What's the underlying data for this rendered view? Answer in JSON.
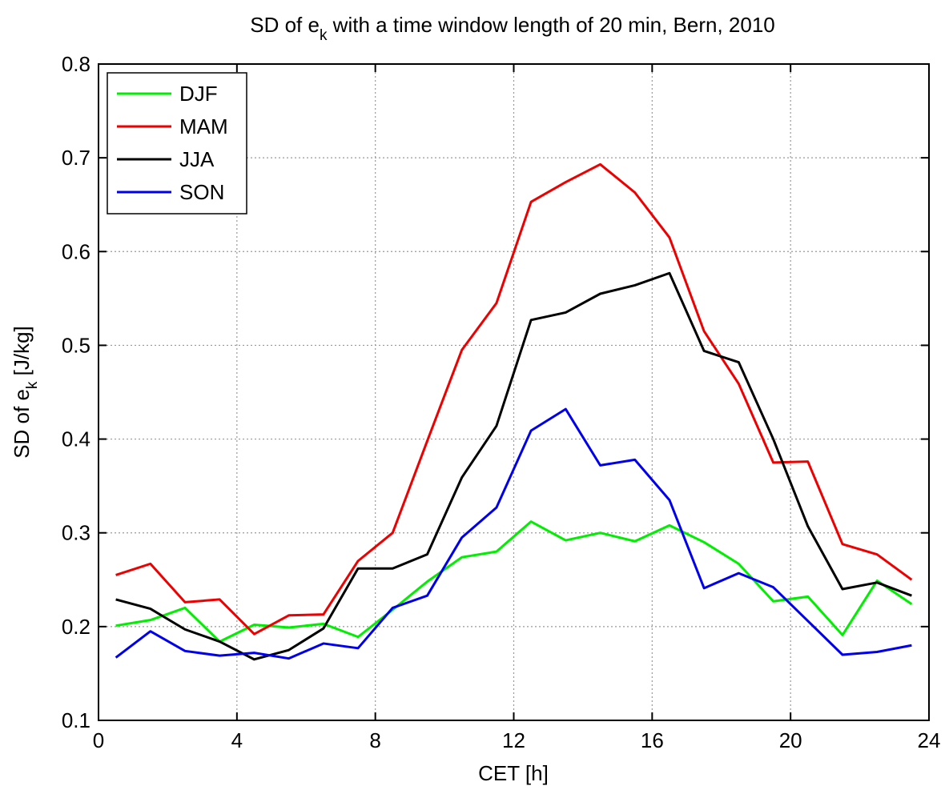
{
  "chart_data": {
    "type": "line",
    "title": {
      "text": "SD of e",
      "sub": "k",
      "rest": " with a time window length of 20 min, Bern, 2010"
    },
    "xlabel": "CET [h]",
    "ylabel": {
      "text": "SD of e",
      "sub": "k",
      "rest": " [J/kg]"
    },
    "x": [
      0.5,
      1.5,
      2.5,
      3.5,
      4.5,
      5.5,
      6.5,
      7.5,
      8.5,
      9.5,
      10.5,
      11.5,
      12.5,
      13.5,
      14.5,
      15.5,
      16.5,
      17.5,
      18.5,
      19.5,
      20.5,
      21.5,
      22.5,
      23.5
    ],
    "series": [
      {
        "name": "DJF",
        "color": "#00ee00",
        "values": [
          0.201,
          0.207,
          0.22,
          0.184,
          0.202,
          0.199,
          0.203,
          0.189,
          0.218,
          0.248,
          0.274,
          0.28,
          0.312,
          0.292,
          0.3,
          0.291,
          0.308,
          0.29,
          0.267,
          0.227,
          0.232,
          0.191,
          0.249,
          0.224
        ]
      },
      {
        "name": "MAM",
        "color": "#ee0000",
        "values": [
          0.255,
          0.267,
          0.226,
          0.229,
          0.192,
          0.212,
          0.213,
          0.27,
          0.3,
          0.398,
          0.495,
          0.545,
          0.653,
          0.674,
          0.693,
          0.663,
          0.615,
          0.515,
          0.459,
          0.375,
          0.376,
          0.288,
          0.277,
          0.25
        ]
      },
      {
        "name": "JJA",
        "color": "#000000",
        "values": [
          0.229,
          0.219,
          0.197,
          0.184,
          0.165,
          0.175,
          0.198,
          0.262,
          0.262,
          0.277,
          0.359,
          0.414,
          0.527,
          0.535,
          0.555,
          0.564,
          0.577,
          0.494,
          0.482,
          0.4,
          0.307,
          0.24,
          0.247,
          0.233
        ]
      },
      {
        "name": "SON",
        "color": "#0000ee",
        "values": [
          0.167,
          0.195,
          0.174,
          0.169,
          0.172,
          0.166,
          0.182,
          0.177,
          0.22,
          0.233,
          0.295,
          0.327,
          0.409,
          0.432,
          0.372,
          0.378,
          0.335,
          0.241,
          0.257,
          0.242,
          0.206,
          0.17,
          0.173,
          0.18
        ]
      }
    ],
    "xlim": [
      0,
      24
    ],
    "xticks": [
      0,
      4,
      8,
      12,
      16,
      20,
      24
    ],
    "ylim": [
      0.1,
      0.8
    ],
    "yticks": [
      0.1,
      0.2,
      0.3,
      0.4,
      0.5,
      0.6,
      0.7,
      0.8
    ],
    "grid": true,
    "legend": "upper-left"
  }
}
